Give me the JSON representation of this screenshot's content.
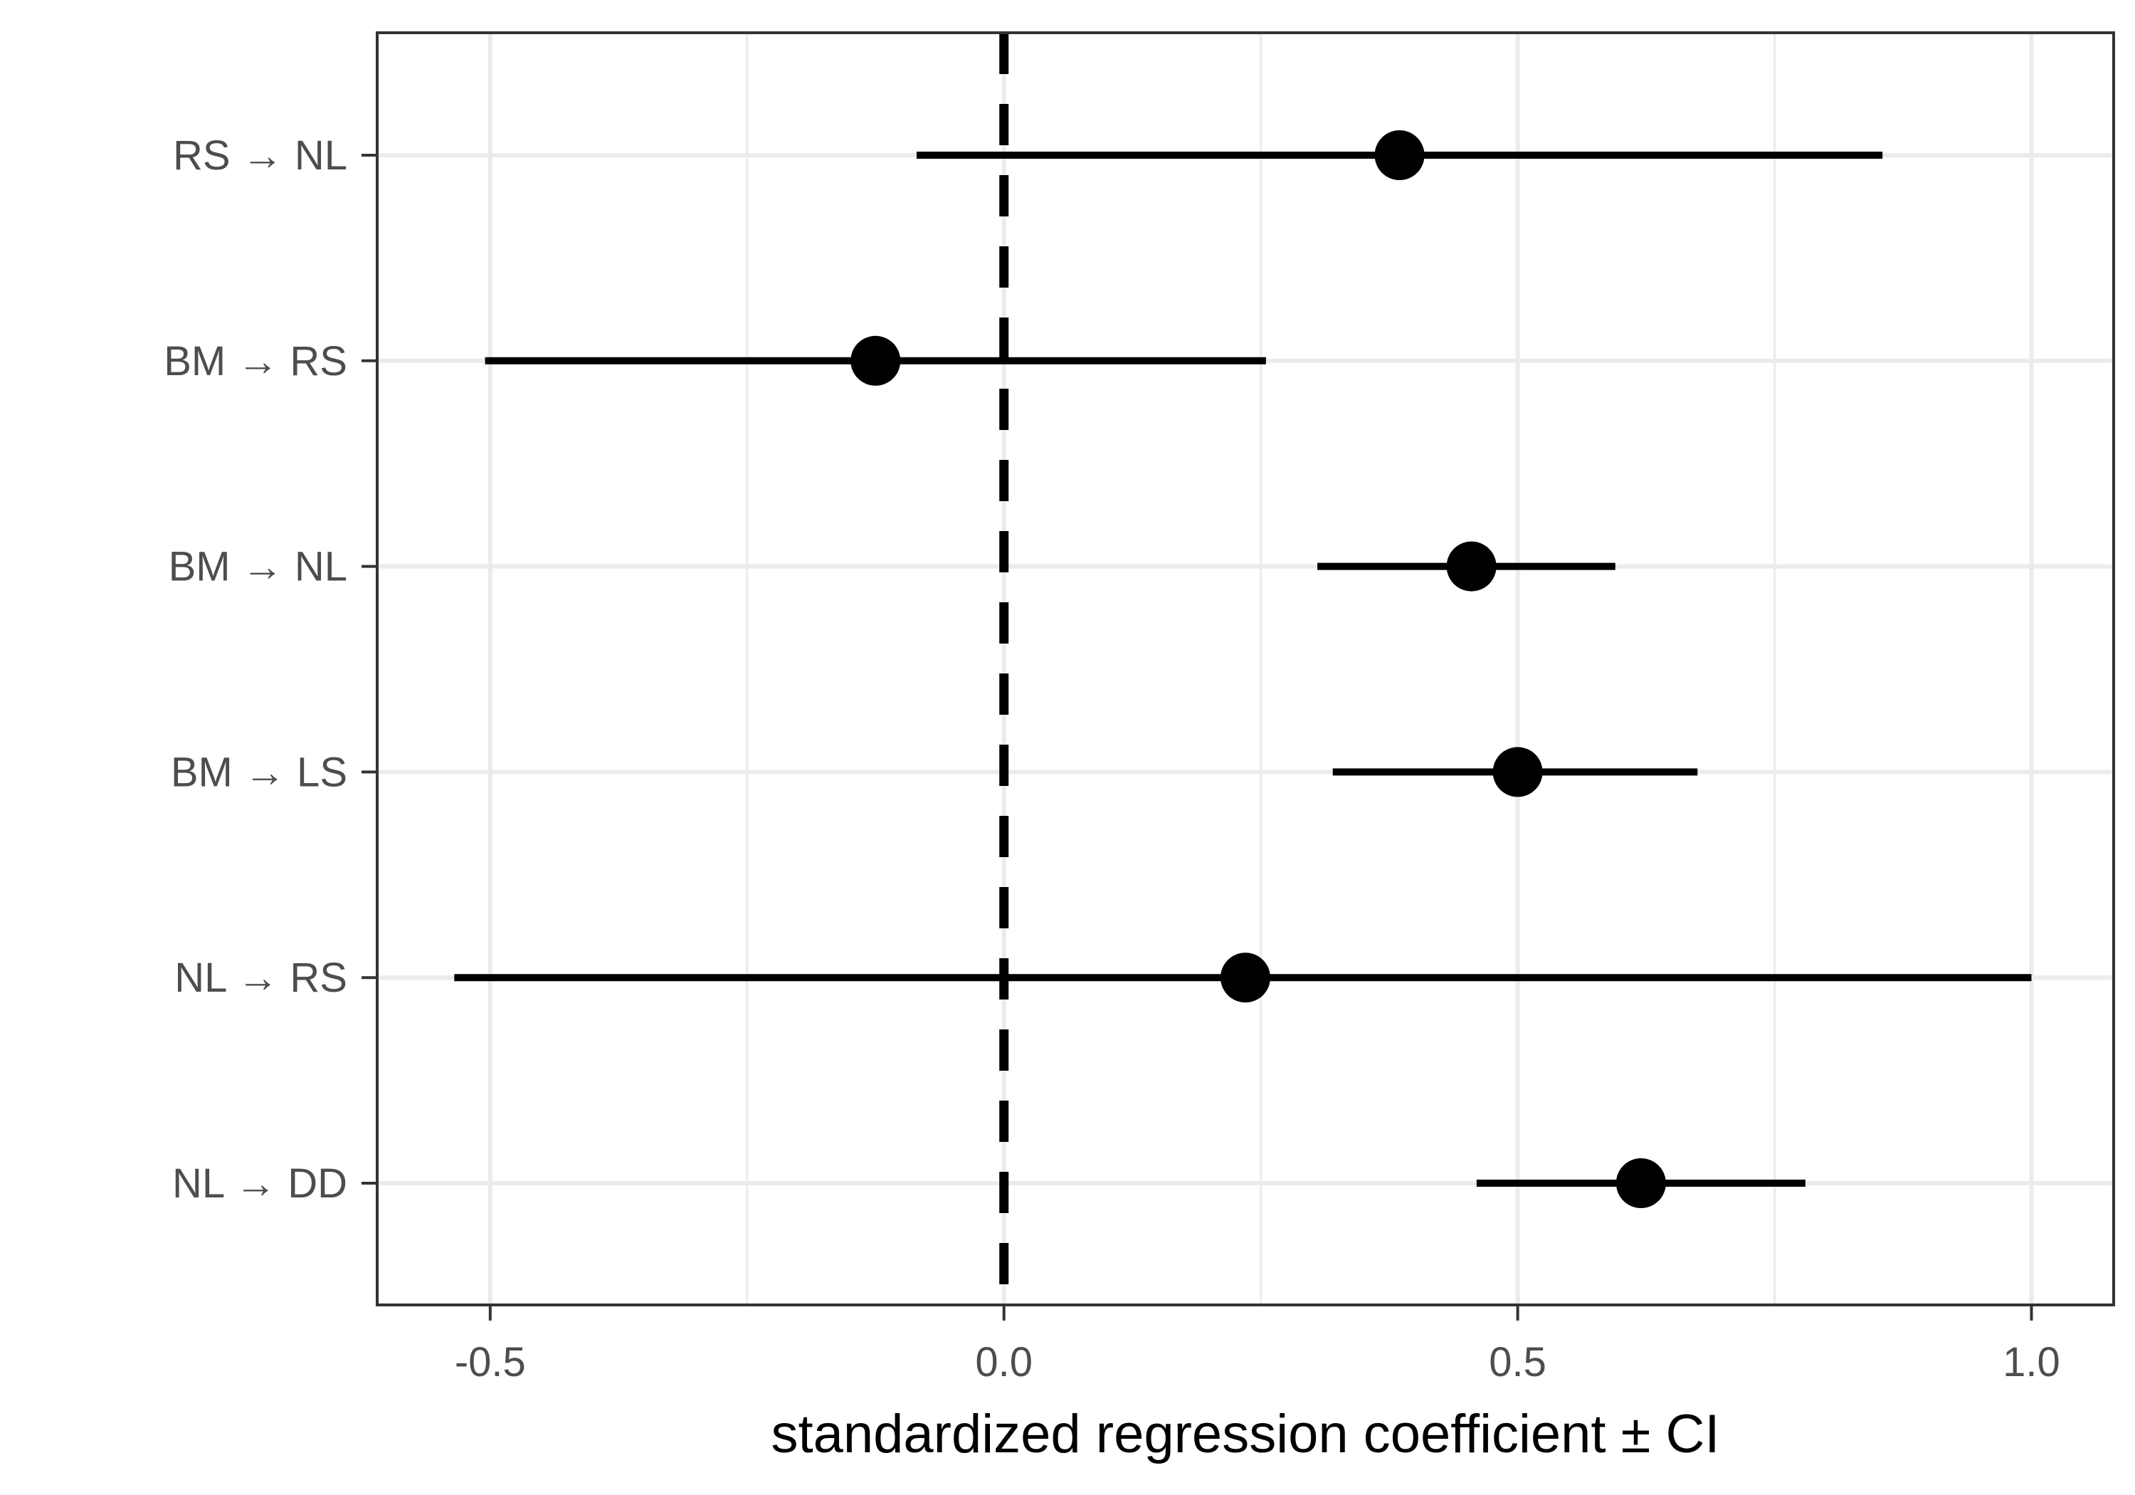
{
  "chart_data": {
    "type": "scatter",
    "subtype": "coefficient-plot",
    "title": "",
    "xlabel": "standardized regression coefficient ± CI",
    "ylabel": "",
    "xlim": [
      -0.61,
      1.08
    ],
    "x_ticks": [
      -0.5,
      0.0,
      0.5,
      1.0
    ],
    "x_tick_labels": [
      "-0.5",
      "0.0",
      "0.5",
      "1.0"
    ],
    "grid": true,
    "reference_line": {
      "x": 0.0,
      "style": "dashed"
    },
    "categories": [
      "RS → NL",
      "BM → RS",
      "BM → NL",
      "BM → LS",
      "NL → RS",
      "NL → DD"
    ],
    "estimates": [
      0.385,
      -0.125,
      0.455,
      0.5,
      0.235,
      0.62
    ],
    "ci_low": [
      -0.085,
      -0.505,
      0.305,
      0.32,
      -0.535,
      0.46
    ],
    "ci_high": [
      0.855,
      0.255,
      0.595,
      0.675,
      1.0,
      0.78
    ],
    "colors": {
      "marks": "#000000",
      "grid": "#ebebeb",
      "panel_border": "#333333",
      "tick_text": "#4d4d4d"
    }
  }
}
